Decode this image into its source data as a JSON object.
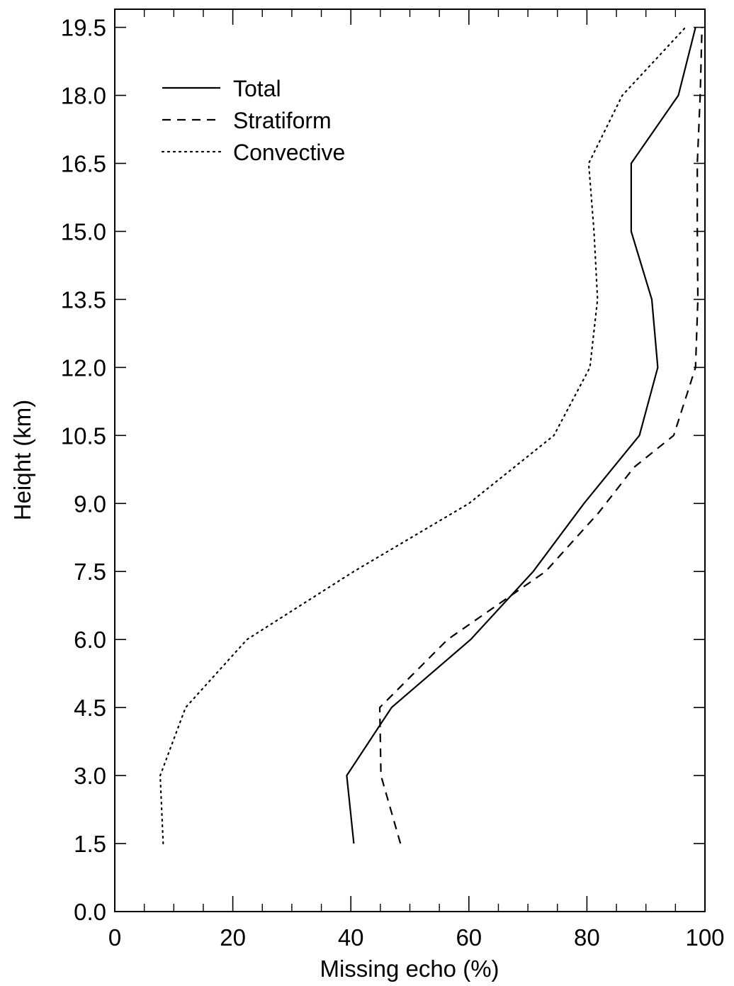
{
  "chart_data": {
    "type": "line",
    "title": "",
    "xlabel": "Missing echo (%)",
    "ylabel": "Heiqht (km)",
    "xlim": [
      0,
      100
    ],
    "ylim": [
      0,
      19.9
    ],
    "xticks": [
      0,
      20,
      40,
      60,
      80,
      100
    ],
    "xtick_labels": [
      "0",
      "20",
      "40",
      "60",
      "80",
      "100"
    ],
    "yticks": [
      0,
      1.5,
      3,
      4.5,
      6,
      7.5,
      9,
      10.5,
      12,
      13.5,
      15,
      16.5,
      18,
      19.5
    ],
    "ytick_labels": [
      "0.0",
      "1.5",
      "3.0",
      "4.5",
      "6.0",
      "7.5",
      "9.0",
      "10.5",
      "12.0",
      "13.5",
      "15.0",
      "16.5",
      "18.0",
      "19.5"
    ],
    "grid": false,
    "legend_position": "top-left",
    "series": [
      {
        "name": "Total",
        "style": "solid",
        "points": [
          {
            "x": 40.5,
            "y": 1.5
          },
          {
            "x": 39.3,
            "y": 3.0
          },
          {
            "x": 46.9,
            "y": 4.5
          },
          {
            "x": 60.3,
            "y": 6.0
          },
          {
            "x": 70.9,
            "y": 7.5
          },
          {
            "x": 79.5,
            "y": 9.0
          },
          {
            "x": 88.9,
            "y": 10.5
          },
          {
            "x": 92.0,
            "y": 12.0
          },
          {
            "x": 91.0,
            "y": 13.5
          },
          {
            "x": 87.5,
            "y": 15.0
          },
          {
            "x": 87.5,
            "y": 16.5
          },
          {
            "x": 95.5,
            "y": 18.0
          },
          {
            "x": 98.4,
            "y": 19.5
          }
        ]
      },
      {
        "name": "Stratiform",
        "style": "dashed",
        "points": [
          {
            "x": 48.4,
            "y": 1.5
          },
          {
            "x": 45.1,
            "y": 3.0
          },
          {
            "x": 44.9,
            "y": 4.5
          },
          {
            "x": 56.4,
            "y": 6.0
          },
          {
            "x": 73.0,
            "y": 7.5
          },
          {
            "x": 82.0,
            "y": 8.8
          },
          {
            "x": 88.0,
            "y": 9.8
          },
          {
            "x": 94.7,
            "y": 10.5
          },
          {
            "x": 98.4,
            "y": 12.0
          },
          {
            "x": 98.8,
            "y": 13.5
          },
          {
            "x": 98.7,
            "y": 15.0
          },
          {
            "x": 98.7,
            "y": 16.5
          },
          {
            "x": 99.2,
            "y": 18.0
          },
          {
            "x": 99.5,
            "y": 19.5
          }
        ]
      },
      {
        "name": "Convective",
        "style": "dotted",
        "points": [
          {
            "x": 8.2,
            "y": 1.5
          },
          {
            "x": 7.7,
            "y": 3.0
          },
          {
            "x": 12.0,
            "y": 4.5
          },
          {
            "x": 22.4,
            "y": 6.0
          },
          {
            "x": 40.5,
            "y": 7.5
          },
          {
            "x": 60.0,
            "y": 9.0
          },
          {
            "x": 74.4,
            "y": 10.5
          },
          {
            "x": 80.5,
            "y": 12.0
          },
          {
            "x": 81.8,
            "y": 13.5
          },
          {
            "x": 81.2,
            "y": 15.0
          },
          {
            "x": 80.3,
            "y": 16.5
          },
          {
            "x": 86.0,
            "y": 18.0
          },
          {
            "x": 96.7,
            "y": 19.5
          }
        ]
      }
    ]
  }
}
